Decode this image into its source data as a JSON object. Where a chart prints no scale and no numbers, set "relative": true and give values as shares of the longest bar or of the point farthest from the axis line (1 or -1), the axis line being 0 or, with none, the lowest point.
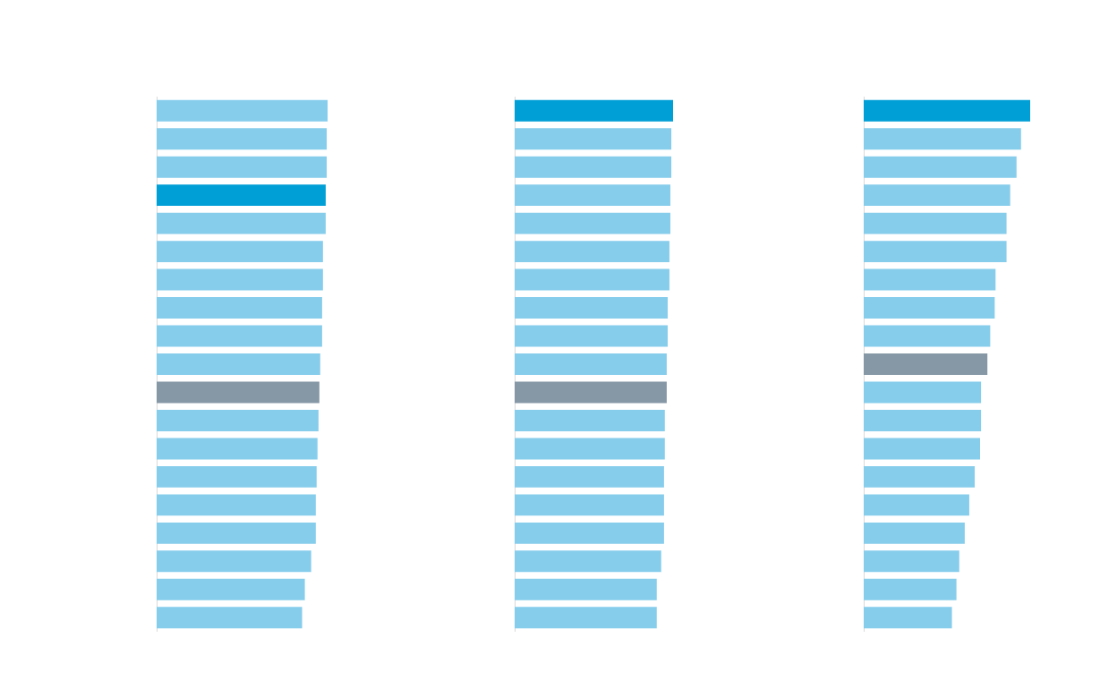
{
  "chart_data": [
    {
      "type": "bar",
      "orientation": "horizontal",
      "relative": true,
      "tick_labels": false,
      "legend": false,
      "categories": [
        null,
        null,
        null,
        null,
        null,
        null,
        null,
        null,
        null,
        null,
        null,
        null,
        null,
        null,
        null,
        null,
        null,
        null,
        null
      ],
      "values": [
        1,
        0.995,
        0.995,
        0.989,
        0.989,
        0.973,
        0.973,
        0.968,
        0.968,
        0.957,
        0.952,
        0.947,
        0.941,
        0.936,
        0.931,
        0.931,
        0.904,
        0.867,
        0.851
      ],
      "colors": [
        "#86cdec",
        "#86cdec",
        "#86cdec",
        "#009fd6",
        "#86cdec",
        "#86cdec",
        "#86cdec",
        "#86cdec",
        "#86cdec",
        "#86cdec",
        "#8698a6",
        "#86cdec",
        "#86cdec",
        "#86cdec",
        "#86cdec",
        "#86cdec",
        "#86cdec",
        "#86cdec",
        "#86cdec"
      ]
    },
    {
      "type": "bar",
      "orientation": "horizontal",
      "relative": true,
      "tick_labels": false,
      "legend": false,
      "categories": [
        null,
        null,
        null,
        null,
        null,
        null,
        null,
        null,
        null,
        null,
        null,
        null,
        null,
        null,
        null,
        null,
        null,
        null,
        null
      ],
      "values": [
        1,
        0.989,
        0.989,
        0.983,
        0.983,
        0.977,
        0.977,
        0.966,
        0.966,
        0.96,
        0.96,
        0.948,
        0.948,
        0.943,
        0.943,
        0.943,
        0.925,
        0.897,
        0.897
      ],
      "colors": [
        "#009fd6",
        "#86cdec",
        "#86cdec",
        "#86cdec",
        "#86cdec",
        "#86cdec",
        "#86cdec",
        "#86cdec",
        "#86cdec",
        "#86cdec",
        "#8698a6",
        "#86cdec",
        "#86cdec",
        "#86cdec",
        "#86cdec",
        "#86cdec",
        "#86cdec",
        "#86cdec",
        "#86cdec"
      ]
    },
    {
      "type": "bar",
      "orientation": "horizontal",
      "relative": true,
      "tick_labels": false,
      "legend": false,
      "categories": [
        null,
        null,
        null,
        null,
        null,
        null,
        null,
        null,
        null,
        null,
        null,
        null,
        null,
        null,
        null,
        null,
        null,
        null,
        null
      ],
      "values": [
        1,
        0.945,
        0.918,
        0.88,
        0.858,
        0.858,
        0.792,
        0.787,
        0.76,
        0.743,
        0.705,
        0.705,
        0.699,
        0.667,
        0.634,
        0.607,
        0.574,
        0.557,
        0.53
      ],
      "colors": [
        "#009fd6",
        "#86cdec",
        "#86cdec",
        "#86cdec",
        "#86cdec",
        "#86cdec",
        "#86cdec",
        "#86cdec",
        "#86cdec",
        "#8698a6",
        "#86cdec",
        "#86cdec",
        "#86cdec",
        "#86cdec",
        "#86cdec",
        "#86cdec",
        "#86cdec",
        "#86cdec",
        "#86cdec"
      ]
    }
  ]
}
